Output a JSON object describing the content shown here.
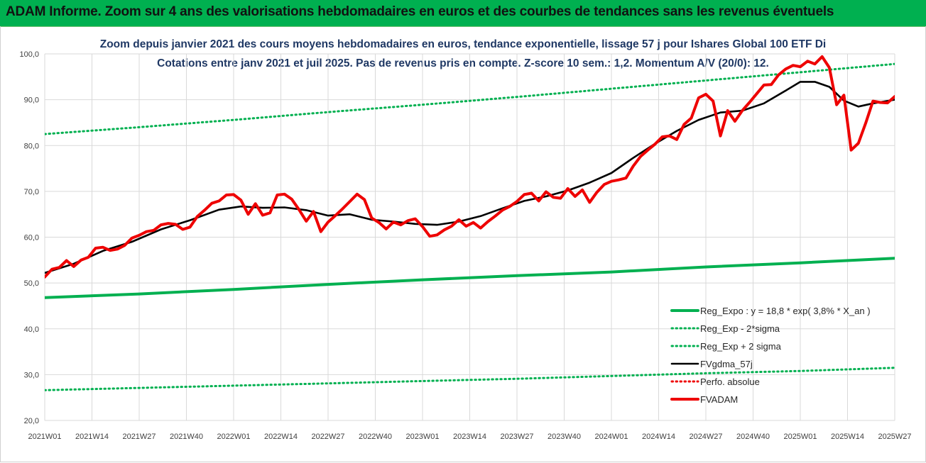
{
  "banner": {
    "title": "ADAM Informe. Zoom sur 4 ans des valorisations hebdomadaires en euros et des courbes de tendances sans les revenus éventuels"
  },
  "colors": {
    "banner_bg": "#00b050",
    "title_text": "#1f3864",
    "reg_expo": "#00b050",
    "fvgdma": "#000000",
    "fvadam": "#ee0000",
    "perfo": "#ee0000",
    "gridline": "#d9d9d9"
  },
  "chart_data": {
    "type": "line",
    "title": [
      "Zoom depuis janvier 2021 des cours moyens hebdomadaires en euros, tendance exponentielle, lissage 57 j pour Ishares Global 100 ETF Di",
      "Cotations entre janv 2021 et juil 2025. Pas de revenus pris en compte. Z-score 10 sem.: 1,2. Momentum A/V (20/0): 12."
    ],
    "xlabel": "",
    "ylabel": "",
    "ylim": [
      20,
      100
    ],
    "yticks": [
      "20,0",
      "30,0",
      "40,0",
      "50,0",
      "60,0",
      "70,0",
      "80,0",
      "90,0",
      "100,0"
    ],
    "x_range_weeks": [
      0,
      234
    ],
    "xticks": [
      {
        "label": "2021W01",
        "week": 0
      },
      {
        "label": "2021W14",
        "week": 13
      },
      {
        "label": "2021W27",
        "week": 26
      },
      {
        "label": "2021W40",
        "week": 39
      },
      {
        "label": "2022W01",
        "week": 52
      },
      {
        "label": "2022W14",
        "week": 65
      },
      {
        "label": "2022W27",
        "week": 78
      },
      {
        "label": "2022W40",
        "week": 91
      },
      {
        "label": "2023W01",
        "week": 104
      },
      {
        "label": "2023W14",
        "week": 117
      },
      {
        "label": "2023W27",
        "week": 130
      },
      {
        "label": "2023W40",
        "week": 143
      },
      {
        "label": "2024W01",
        "week": 156
      },
      {
        "label": "2024W14",
        "week": 169
      },
      {
        "label": "2024W27",
        "week": 182
      },
      {
        "label": "2024W40",
        "week": 195
      },
      {
        "label": "2025W01",
        "week": 208
      },
      {
        "label": "2025W14",
        "week": 221
      },
      {
        "label": "2025W27",
        "week": 234
      }
    ],
    "grid": true,
    "legend_position": "bottom-right",
    "series": [
      {
        "name": "Reg_Expo : y = 18,8 * exp( 3,8% * X_an )",
        "style": "solid",
        "color": "#00b050",
        "x": [
          0,
          26,
          52,
          78,
          104,
          130,
          156,
          182,
          208,
          234
        ],
        "y": [
          46.8,
          47.6,
          48.6,
          49.7,
          50.7,
          51.6,
          52.4,
          53.5,
          54.4,
          55.4
        ]
      },
      {
        "name": "Reg_Exp - 2*sigma",
        "style": "dotted",
        "color": "#00b050",
        "x": [
          0,
          26,
          52,
          78,
          104,
          130,
          156,
          182,
          208,
          234
        ],
        "y": [
          26.6,
          27.1,
          27.6,
          28.1,
          28.6,
          29.1,
          29.7,
          30.3,
          30.8,
          31.5
        ]
      },
      {
        "name": "Reg_Exp + 2 sigma",
        "style": "dotted",
        "color": "#00b050",
        "x": [
          0,
          26,
          52,
          78,
          104,
          130,
          156,
          182,
          208,
          234
        ],
        "y": [
          82.5,
          84.0,
          85.6,
          87.3,
          88.9,
          90.6,
          92.4,
          94.2,
          96.0,
          97.8
        ]
      },
      {
        "name": "FVgdma_57j",
        "style": "solid",
        "color": "#000000",
        "x": [
          0,
          8,
          16,
          24,
          32,
          40,
          48,
          54,
          60,
          66,
          72,
          78,
          84,
          90,
          96,
          102,
          108,
          114,
          120,
          126,
          132,
          138,
          144,
          150,
          156,
          162,
          168,
          174,
          180,
          186,
          192,
          198,
          204,
          208,
          212,
          216,
          220,
          224,
          228,
          234
        ],
        "y": [
          52.2,
          54.2,
          57.0,
          59.0,
          61.7,
          63.7,
          66.0,
          66.7,
          66.4,
          66.5,
          65.9,
          64.7,
          65.0,
          63.8,
          63.4,
          62.9,
          62.7,
          63.4,
          64.6,
          66.3,
          67.9,
          68.9,
          70.2,
          71.9,
          74.0,
          77.3,
          80.4,
          83.2,
          85.6,
          87.2,
          87.6,
          89.2,
          92.0,
          93.9,
          93.9,
          92.8,
          89.8,
          88.5,
          89.2,
          90.0
        ]
      },
      {
        "name": "Perfo. absolue",
        "style": "dotted",
        "color": "#ee0000",
        "x": [],
        "y": []
      },
      {
        "name": "FVADAM",
        "style": "solid",
        "color": "#ee0000",
        "x": [
          0,
          2,
          4,
          6,
          8,
          10,
          12,
          14,
          16,
          18,
          20,
          22,
          24,
          26,
          28,
          30,
          32,
          34,
          36,
          38,
          40,
          42,
          44,
          46,
          48,
          50,
          52,
          54,
          56,
          58,
          60,
          62,
          64,
          66,
          68,
          70,
          72,
          74,
          76,
          78,
          80,
          82,
          84,
          86,
          88,
          90,
          92,
          94,
          96,
          98,
          100,
          102,
          104,
          106,
          108,
          110,
          112,
          114,
          116,
          118,
          120,
          122,
          124,
          126,
          128,
          130,
          132,
          134,
          136,
          138,
          140,
          142,
          144,
          146,
          148,
          150,
          152,
          154,
          156,
          158,
          160,
          162,
          164,
          166,
          168,
          170,
          172,
          174,
          176,
          178,
          180,
          182,
          184,
          186,
          188,
          190,
          192,
          194,
          196,
          198,
          200,
          202,
          204,
          206,
          208,
          210,
          212,
          214,
          216,
          218,
          220,
          222,
          224,
          226,
          228,
          230,
          232,
          234
        ],
        "y": [
          51.3,
          53.0,
          53.4,
          54.9,
          53.6,
          55.0,
          55.6,
          57.6,
          57.8,
          57.1,
          57.4,
          58.2,
          59.8,
          60.4,
          61.2,
          61.5,
          62.7,
          63.0,
          62.8,
          61.7,
          62.2,
          64.5,
          65.9,
          67.4,
          67.9,
          69.2,
          69.3,
          68.1,
          65.0,
          67.3,
          64.8,
          65.3,
          69.2,
          69.4,
          68.3,
          66.0,
          63.5,
          65.6,
          61.2,
          63.3,
          64.7,
          66.2,
          67.8,
          69.4,
          68.2,
          64.2,
          63.2,
          61.8,
          63.3,
          62.7,
          63.6,
          64.0,
          62.3,
          60.2,
          60.5,
          61.6,
          62.4,
          63.8,
          62.4,
          63.2,
          62.0,
          63.4,
          64.6,
          65.9,
          66.7,
          67.8,
          69.3,
          69.6,
          67.9,
          69.9,
          68.7,
          68.5,
          70.6,
          68.9,
          70.3,
          67.6,
          69.8,
          71.5,
          72.2,
          72.5,
          72.9,
          75.5,
          77.6,
          79.0,
          80.3,
          81.9,
          82.1,
          81.3,
          84.6,
          86.0,
          90.4,
          91.2,
          89.7,
          82.1,
          87.6,
          85.3,
          87.6,
          89.4,
          91.3,
          93.2,
          93.3,
          95.4,
          96.7,
          97.5,
          97.2,
          98.4,
          97.8,
          99.4,
          97.0,
          88.9,
          91.0,
          79.0,
          80.5,
          84.9,
          89.7,
          89.4,
          89.3,
          90.7
        ]
      }
    ]
  }
}
